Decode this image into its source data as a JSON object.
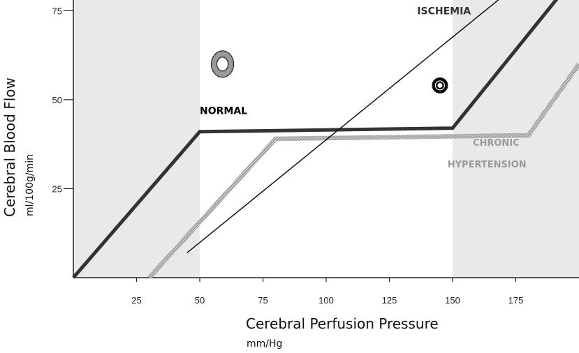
{
  "chart_data": {
    "type": "line",
    "xlabel": "Cerebral Perfusion Pressure",
    "xlabel_unit": "mm/Hg",
    "ylabel": "Cerebral Blood Flow",
    "ylabel_unit": "ml/100g/min",
    "xlim": [
      0,
      200
    ],
    "ylim": [
      0,
      78
    ],
    "x_ticks": [
      25,
      50,
      75,
      100,
      125,
      150,
      175
    ],
    "y_ticks": [
      25,
      50,
      75
    ],
    "shaded_regions": [
      [
        0,
        50
      ],
      [
        150,
        200
      ]
    ],
    "series": [
      {
        "name": "NORMAL",
        "style": "thick-solid",
        "color": "#333333",
        "points": [
          [
            0,
            0
          ],
          [
            50,
            41
          ],
          [
            150,
            42
          ],
          [
            200,
            86
          ]
        ]
      },
      {
        "name": "CHRONIC HYPERTENSION",
        "style": "thick-hatched",
        "color": "#888888",
        "points": [
          [
            30,
            0
          ],
          [
            80,
            39
          ],
          [
            180,
            40
          ],
          [
            200,
            60
          ]
        ]
      },
      {
        "name": "ISCHEMIA",
        "style": "thin-solid",
        "color": "#111111",
        "points": [
          [
            45,
            7
          ],
          [
            175,
            82
          ]
        ]
      }
    ],
    "annotations": [
      {
        "label": "NORMAL",
        "x": 50,
        "y": 46,
        "color": "#000000",
        "size": 14
      },
      {
        "label": "ISCHEMIA",
        "x": 136,
        "y": 74,
        "color": "#333333",
        "size": 14
      },
      {
        "label": "CHRONIC",
        "x": 158,
        "y": 37,
        "color": "#9a9a9a",
        "size": 13
      },
      {
        "label": "HYPERTENSION",
        "x": 148,
        "y": 31,
        "color": "#9a9a9a",
        "size": 13
      }
    ],
    "vessel_icons": [
      {
        "name": "normal-vessel-icon",
        "x": 59,
        "y": 60,
        "rx": 16,
        "ry": 19,
        "wall_color": "#9a9a9a",
        "lumen_color": "#ffffff",
        "lumen_rx": 8,
        "lumen_ry": 10
      },
      {
        "name": "constricted-vessel-icon",
        "x": 145,
        "y": 54,
        "rx": 11,
        "ry": 11,
        "wall_color": "#000000",
        "lumen_color": "#ffffff",
        "lumen_rx": 3.5,
        "lumen_ry": 3.5,
        "ring_color": "#ffffff"
      },
      {
        "name": "dilated-vessel-icon",
        "x": 162,
        "y": 88,
        "rx": 16.5,
        "ry": 19.5,
        "wall_color": "#8a8a8a",
        "lumen_color": "#ffffff",
        "lumen_rx": 8,
        "lumen_ry": 9
      }
    ]
  }
}
